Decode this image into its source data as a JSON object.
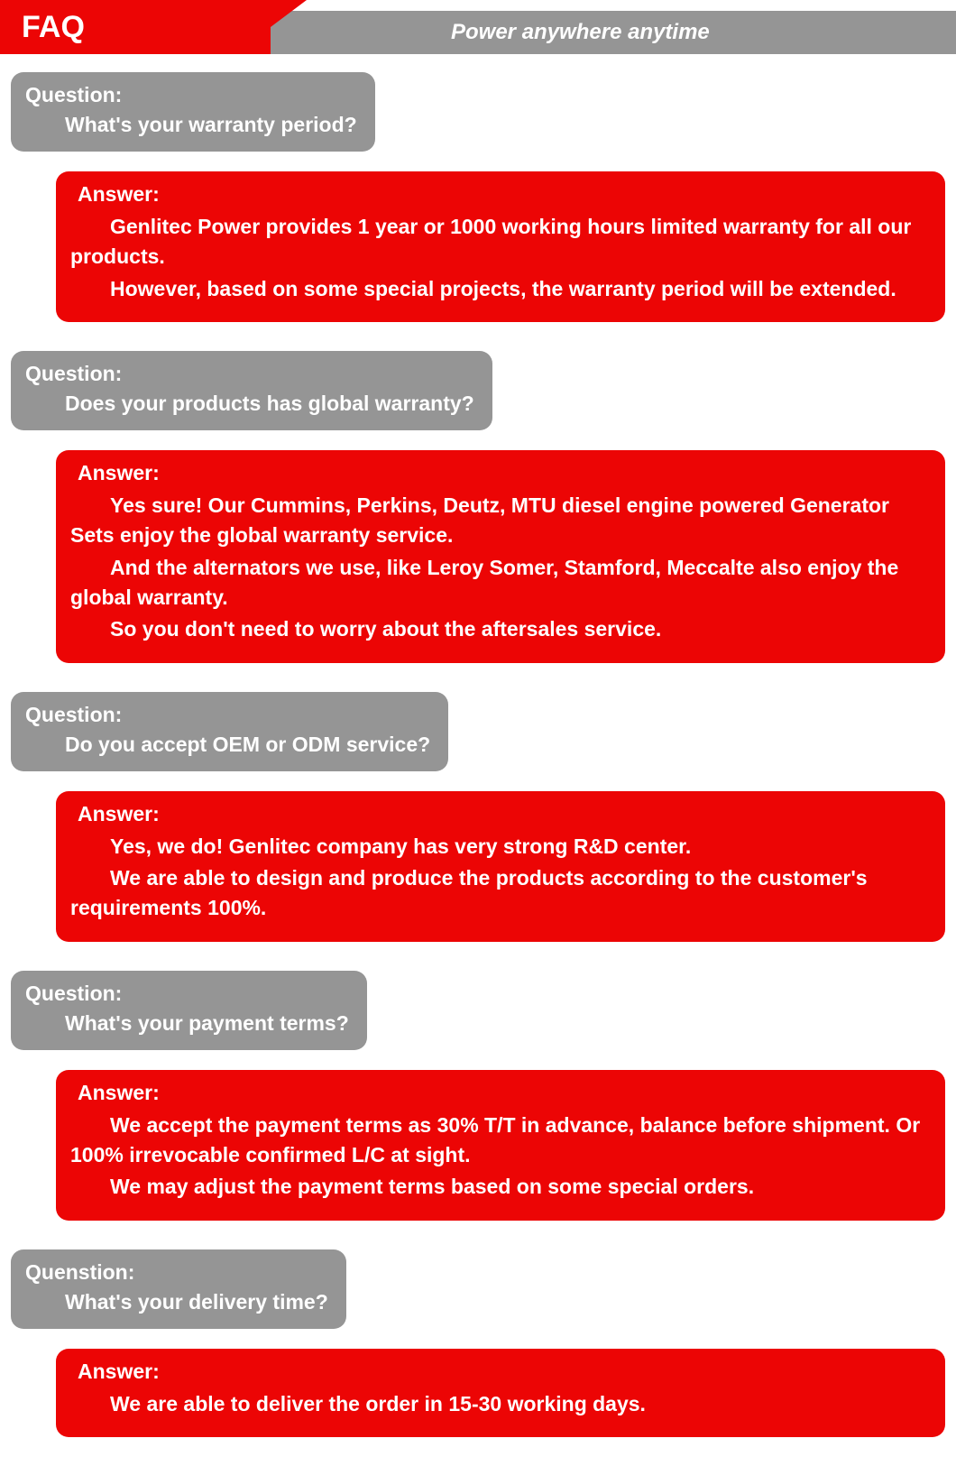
{
  "header": {
    "title": "FAQ",
    "tagline": "Power anywhere anytime"
  },
  "colors": {
    "red": "#ec0505",
    "gray": "#959595",
    "white": "#ffffff"
  },
  "faq": [
    {
      "q_label": "Question:",
      "q_text": "What's your warranty period?",
      "a_label": "Answer:",
      "a_paras": [
        "Genlitec Power provides 1 year or 1000 working hours limited warranty for all our products.",
        "However, based on some special projects, the warranty period will be extended."
      ]
    },
    {
      "q_label": "Question:",
      "q_text": "Does your products has global warranty?",
      "a_label": "Answer:",
      "a_paras": [
        "Yes sure! Our Cummins, Perkins, Deutz, MTU diesel engine powered Generator Sets enjoy the global warranty service.",
        "And the alternators we use, like Leroy Somer, Stamford, Meccalte also enjoy the global warranty.",
        "So you don't need to worry about the aftersales service."
      ]
    },
    {
      "q_label": "Question:",
      "q_text": "Do you accept OEM or ODM service?",
      "a_label": "Answer:",
      "a_paras": [
        "Yes, we do! Genlitec company has very strong R&D center.",
        "We are able to design and produce the products according to the customer's requirements 100%."
      ]
    },
    {
      "q_label": "Question:",
      "q_text": "What's your payment terms?",
      "a_label": "Answer:",
      "a_paras": [
        "We accept the payment terms as 30% T/T in advance, balance before shipment. Or 100% irrevocable confirmed L/C at sight.",
        "We may adjust the payment terms based on some special orders."
      ]
    },
    {
      "q_label": "Quenstion:",
      "q_text": "What's your delivery time?",
      "a_label": "Answer:",
      "a_paras": [
        "We are able to deliver the order in 15-30 working days."
      ]
    }
  ]
}
